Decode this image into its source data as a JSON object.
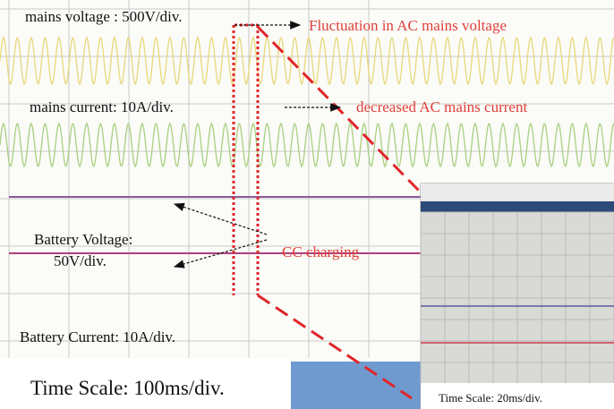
{
  "labels": {
    "mains_voltage": "mains voltage : 500V/div.",
    "fluctuation": "Fluctuation in AC mains voltage",
    "mains_current": "mains current: 10A/div.",
    "decreased_current": "decreased AC mains current",
    "battery_voltage_1": "Battery Voltage:",
    "battery_voltage_2": "50V/div.",
    "cc_charging": "CC charging",
    "battery_current": "Battery Current: 10A/div.",
    "time_scale_main": "Time Scale: 100ms/div.",
    "time_scale_inset": "Time Scale: 20ms/div."
  }
}
